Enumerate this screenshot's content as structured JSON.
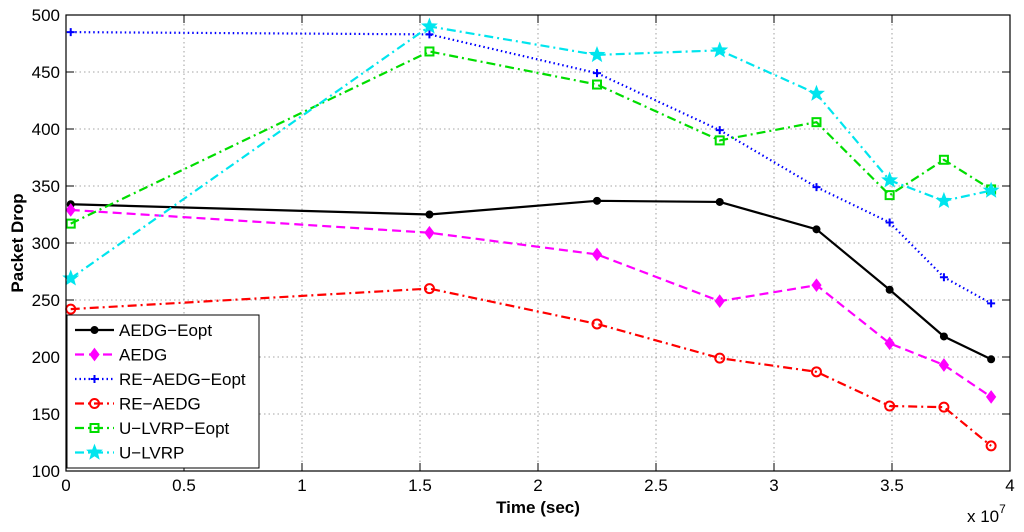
{
  "chart_data": {
    "type": "line",
    "title": "",
    "xlabel": "Time (sec)",
    "ylabel": "Packet Drop",
    "x_multiplier_label": "x 10",
    "x_multiplier_exponent": "7",
    "xlim": [
      0,
      4
    ],
    "ylim": [
      100,
      500
    ],
    "xticks": [
      "0",
      "0.5",
      "1",
      "1.5",
      "2",
      "2.5",
      "3",
      "3.5",
      "4"
    ],
    "xtick_values": [
      0,
      0.5,
      1,
      1.5,
      2,
      2.5,
      3,
      3.5,
      4
    ],
    "yticks": [
      "100",
      "150",
      "200",
      "250",
      "300",
      "350",
      "400",
      "450",
      "500"
    ],
    "ytick_values": [
      100,
      150,
      200,
      250,
      300,
      350,
      400,
      450,
      500
    ],
    "grid": true,
    "legend_position": "bottom-left",
    "series": [
      {
        "name": "AEDG−Eopt",
        "color": "#000000",
        "dash": "solid",
        "marker": "dot",
        "x": [
          0.02,
          1.54,
          2.25,
          2.77,
          3.18,
          3.49,
          3.72,
          3.92
        ],
        "y": [
          334,
          325,
          337,
          336,
          312,
          259,
          218,
          198
        ]
      },
      {
        "name": "AEDG",
        "color": "#ff00ff",
        "dash": "dashed",
        "marker": "diamond",
        "x": [
          0.02,
          1.54,
          2.25,
          2.77,
          3.18,
          3.49,
          3.72,
          3.92
        ],
        "y": [
          329,
          309,
          290,
          249,
          263,
          212,
          193,
          165
        ]
      },
      {
        "name": "RE−AEDG−Eopt",
        "color": "#0000ff",
        "dash": "dotted",
        "marker": "plus",
        "x": [
          0.02,
          1.54,
          2.25,
          2.77,
          3.18,
          3.49,
          3.72,
          3.92
        ],
        "y": [
          485,
          483,
          449,
          399,
          349,
          318,
          270,
          247
        ]
      },
      {
        "name": "RE−AEDG",
        "color": "#ff0000",
        "dash": "dashdot",
        "marker": "circle",
        "x": [
          0.02,
          1.54,
          2.25,
          2.77,
          3.18,
          3.49,
          3.72,
          3.92
        ],
        "y": [
          242,
          260,
          229,
          199,
          187,
          157,
          156,
          122
        ]
      },
      {
        "name": "U−LVRP−Eopt",
        "color": "#00dd00",
        "dash": "dashdot",
        "marker": "square",
        "x": [
          0.02,
          1.54,
          2.25,
          2.77,
          3.18,
          3.49,
          3.72,
          3.92
        ],
        "y": [
          317,
          468,
          439,
          390,
          406,
          342,
          373,
          347
        ]
      },
      {
        "name": "U−LVRP",
        "color": "#00e5ee",
        "dash": "dashdot",
        "marker": "star",
        "x": [
          0.02,
          1.54,
          2.25,
          2.77,
          3.18,
          3.49,
          3.72,
          3.92
        ],
        "y": [
          269,
          490,
          465,
          469,
          431,
          355,
          337,
          346
        ]
      }
    ]
  }
}
